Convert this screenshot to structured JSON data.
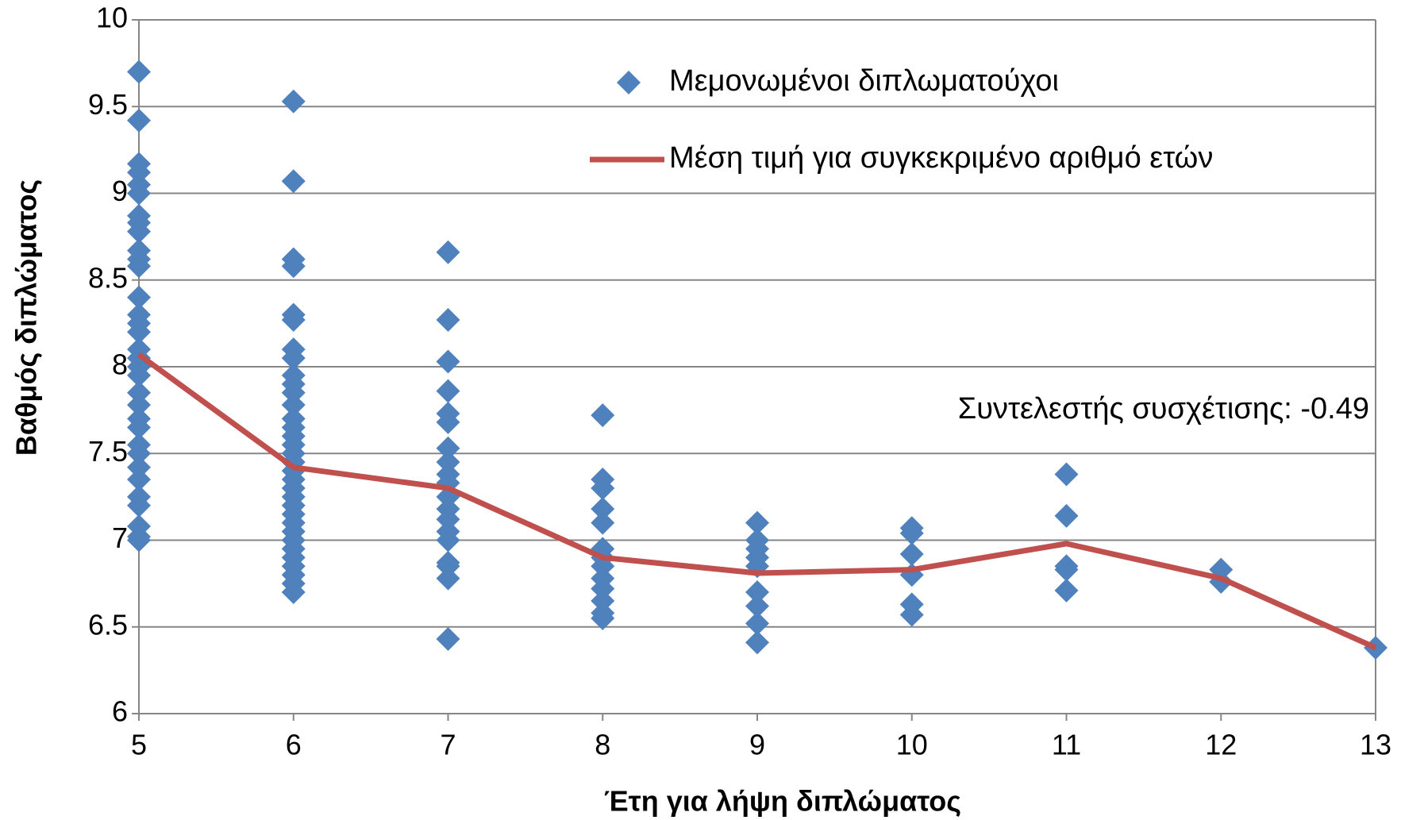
{
  "chart_data": {
    "type": "scatter",
    "xlabel": "Έτη για λήψη διπλώματος",
    "ylabel": "Βαθμός διπλώματος",
    "annotation": "Συντελεστής συσχέτισης: -0.49",
    "xlim": [
      5,
      13
    ],
    "xticks": [
      5,
      6,
      7,
      8,
      9,
      10,
      11,
      12,
      13
    ],
    "ylim": [
      6,
      10
    ],
    "yticks": [
      6,
      6.5,
      7,
      7.5,
      8,
      8.5,
      9,
      9.5,
      10
    ],
    "grid": true,
    "legend": "top",
    "series": [
      {
        "name": "Μεμονωμένοι διπλωματούχοι",
        "type": "scatter",
        "color": "#4f81bd",
        "x": [
          5,
          5,
          5,
          5,
          5,
          5,
          5,
          5,
          5,
          5,
          5,
          5,
          5,
          5,
          5,
          5,
          5,
          5,
          5,
          5,
          5,
          5,
          5,
          5,
          5,
          5,
          5,
          5,
          5,
          5,
          5,
          5,
          5,
          6,
          6,
          6,
          6,
          6,
          6,
          6,
          6,
          6,
          6,
          6,
          6,
          6,
          6,
          6,
          6,
          6,
          6,
          6,
          6,
          6,
          6,
          6,
          6,
          6,
          6,
          6,
          6,
          6,
          6,
          6,
          6,
          6,
          7,
          7,
          7,
          7,
          7,
          7,
          7,
          7,
          7,
          7,
          7,
          7,
          7,
          7,
          7,
          7,
          7,
          7,
          7,
          8,
          8,
          8,
          8,
          8,
          8,
          8,
          8,
          8,
          8,
          8,
          8,
          8,
          9,
          9,
          9,
          9,
          9,
          9,
          9,
          9,
          9,
          10,
          10,
          10,
          10,
          10,
          10,
          11,
          11,
          11,
          11,
          11,
          12,
          12,
          13
        ],
        "values": [
          9.7,
          9.42,
          9.17,
          9.12,
          9.05,
          9.0,
          8.87,
          8.83,
          8.78,
          8.67,
          8.62,
          8.58,
          8.4,
          8.3,
          8.25,
          8.2,
          8.1,
          8.05,
          8.0,
          7.95,
          7.85,
          7.78,
          7.7,
          7.65,
          7.55,
          7.5,
          7.42,
          7.35,
          7.25,
          7.2,
          7.08,
          7.02,
          7.0,
          9.53,
          9.07,
          8.62,
          8.58,
          8.3,
          8.27,
          8.1,
          8.05,
          7.95,
          7.9,
          7.85,
          7.78,
          7.7,
          7.65,
          7.6,
          7.55,
          7.5,
          7.45,
          7.4,
          7.35,
          7.3,
          7.25,
          7.2,
          7.15,
          7.1,
          7.05,
          7.0,
          6.95,
          6.9,
          6.85,
          6.8,
          6.75,
          6.7,
          8.66,
          8.27,
          8.03,
          7.86,
          7.73,
          7.68,
          7.53,
          7.45,
          7.38,
          7.33,
          7.25,
          7.18,
          7.12,
          7.05,
          7.0,
          6.87,
          6.85,
          6.78,
          6.43,
          7.72,
          7.35,
          7.3,
          7.18,
          7.1,
          6.95,
          6.9,
          6.85,
          6.78,
          6.72,
          6.65,
          6.58,
          6.55,
          7.1,
          7.0,
          6.95,
          6.9,
          6.85,
          6.7,
          6.62,
          6.52,
          6.41,
          7.07,
          7.04,
          6.92,
          6.8,
          6.63,
          6.57,
          7.38,
          7.14,
          6.85,
          6.83,
          6.71,
          6.83,
          6.76,
          6.38
        ]
      },
      {
        "name": "Μέση τιμή για συγκεκριμένο αριθμό ετών",
        "type": "line",
        "color": "#c0504d",
        "x": [
          5,
          6,
          7,
          8,
          9,
          10,
          11,
          12,
          13
        ],
        "values": [
          8.07,
          7.42,
          7.3,
          6.9,
          6.81,
          6.83,
          6.98,
          6.78,
          6.38
        ]
      }
    ]
  }
}
